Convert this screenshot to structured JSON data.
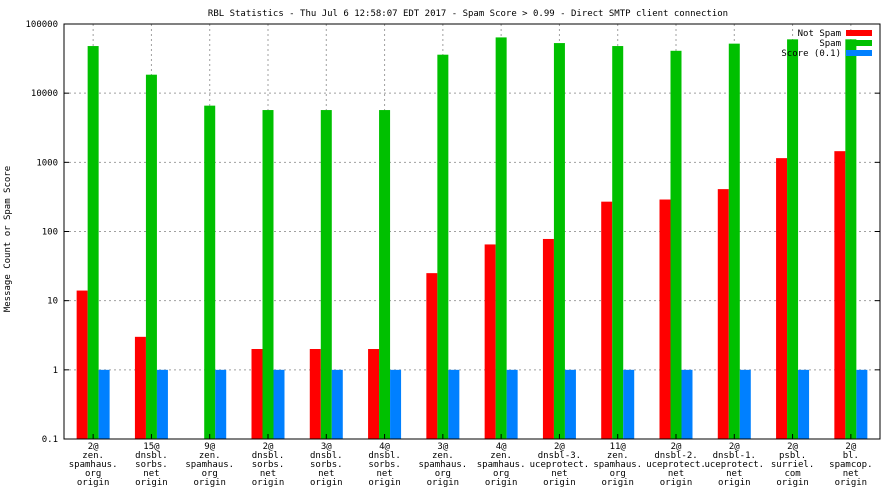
{
  "chart_data": {
    "type": "bar",
    "title": "RBL Statistics - Thu Jul  6 12:58:07 EDT 2017 - Spam Score > 0.99 - Direct SMTP client connection",
    "ylabel": "Message Count or Spam Score",
    "xlabel": "",
    "yscale": "log",
    "ylim": [
      0.1,
      100000
    ],
    "yticks": [
      "0.1",
      "1",
      "10",
      "100",
      "1000",
      "10000",
      "100000"
    ],
    "grid": true,
    "legend_position": "top-right",
    "categories": [
      [
        "2@",
        "zen.",
        "spamhaus.",
        "org",
        "origin"
      ],
      [
        "15@",
        "dnsbl.",
        "sorbs.",
        "net",
        "origin"
      ],
      [
        "9@",
        "zen.",
        "spamhaus.",
        "org",
        "origin"
      ],
      [
        "2@",
        "dnsbl.",
        "sorbs.",
        "net",
        "origin"
      ],
      [
        "3@",
        "dnsbl.",
        "sorbs.",
        "net",
        "origin"
      ],
      [
        "4@",
        "dnsbl.",
        "sorbs.",
        "net",
        "origin"
      ],
      [
        "3@",
        "zen.",
        "spamhaus.",
        "org",
        "origin"
      ],
      [
        "4@",
        "zen.",
        "spamhaus.",
        "org",
        "origin"
      ],
      [
        "2@",
        "dnsbl-3.",
        "uceprotect.",
        "net",
        "origin"
      ],
      [
        "11@",
        "zen.",
        "spamhaus.",
        "org",
        "origin"
      ],
      [
        "2@",
        "dnsbl-2.",
        "uceprotect.",
        "net",
        "origin"
      ],
      [
        "2@",
        "dnsbl-1.",
        "uceprotect.",
        "net",
        "origin"
      ],
      [
        "2@",
        "psbl.",
        "surriel.",
        "com",
        "origin"
      ],
      [
        "2@",
        "bl.",
        "spamcop.",
        "net",
        "origin"
      ]
    ],
    "series": [
      {
        "name": "Not Spam",
        "color": "#ff0000",
        "values": [
          14,
          3,
          null,
          2,
          2,
          2,
          25,
          65,
          78,
          270,
          290,
          410,
          1150,
          1450
        ]
      },
      {
        "name": "Spam",
        "color": "#00c000",
        "values": [
          48000,
          18500,
          6600,
          5700,
          5700,
          5700,
          36000,
          64000,
          53000,
          48000,
          41000,
          52000,
          60000,
          60000
        ]
      },
      {
        "name": "Score (0.1)",
        "color": "#0080ff",
        "values": [
          1,
          1,
          1,
          1,
          1,
          1,
          1,
          1,
          1,
          1,
          1,
          1,
          1,
          1
        ]
      }
    ]
  }
}
